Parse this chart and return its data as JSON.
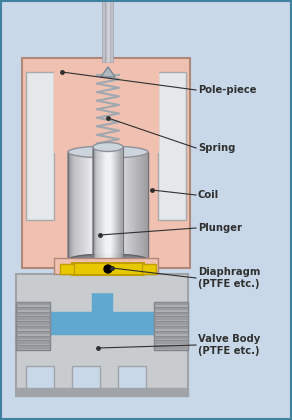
{
  "bg_color": "#c8d8e8",
  "labels": {
    "pole_piece": "Pole-piece",
    "spring": "Spring",
    "coil": "Coil",
    "plunger": "Plunger",
    "diaphragm": "Diaphragm\n(PTFE etc.)",
    "valve_body": "Valve Body\n(PTFE etc.)"
  },
  "colors": {
    "solenoid_body": "#f0c0b0",
    "solenoid_outline": "#b08878",
    "spring_color": "#a0a8b0",
    "yellow": "#e8c800",
    "yellow_dark": "#c0a000",
    "blue_fluid": "#60a8d0",
    "valve_body_light": "#c8ccce",
    "valve_body_gray": "#a0a4a8",
    "white_inner": "#e4e8ea",
    "thread_dark": "#808088",
    "black": "#000000",
    "dark_gray": "#303030",
    "wire_color": "#c0c0c8",
    "bg_color": "#c8d8e8"
  }
}
